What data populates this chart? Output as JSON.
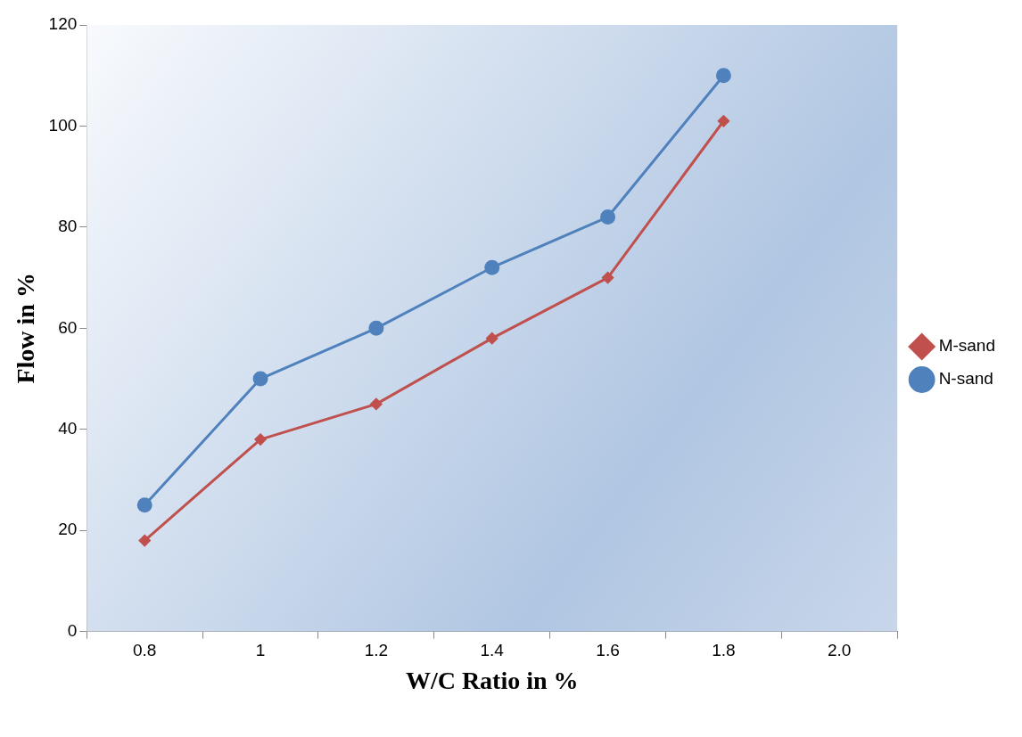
{
  "chart_data": {
    "type": "line",
    "xlabel": "W/C Ratio in %",
    "ylabel": "Flow in %",
    "categories": [
      "0.8",
      "1",
      "1.2",
      "1.4",
      "1.6",
      "1.8",
      "2.0"
    ],
    "series": [
      {
        "name": "M-sand",
        "color": "#c0504d",
        "marker": "diamond",
        "values": [
          18,
          38,
          45,
          58,
          70,
          101,
          null
        ]
      },
      {
        "name": "N-sand",
        "color": "#4f81bd",
        "marker": "circle",
        "values": [
          25,
          50,
          60,
          72,
          82,
          110,
          null
        ]
      }
    ],
    "ylim": [
      0,
      120
    ],
    "yticks": [
      0,
      20,
      40,
      60,
      80,
      100,
      120
    ],
    "grid": false,
    "legend": "right",
    "line_style": "solid"
  }
}
